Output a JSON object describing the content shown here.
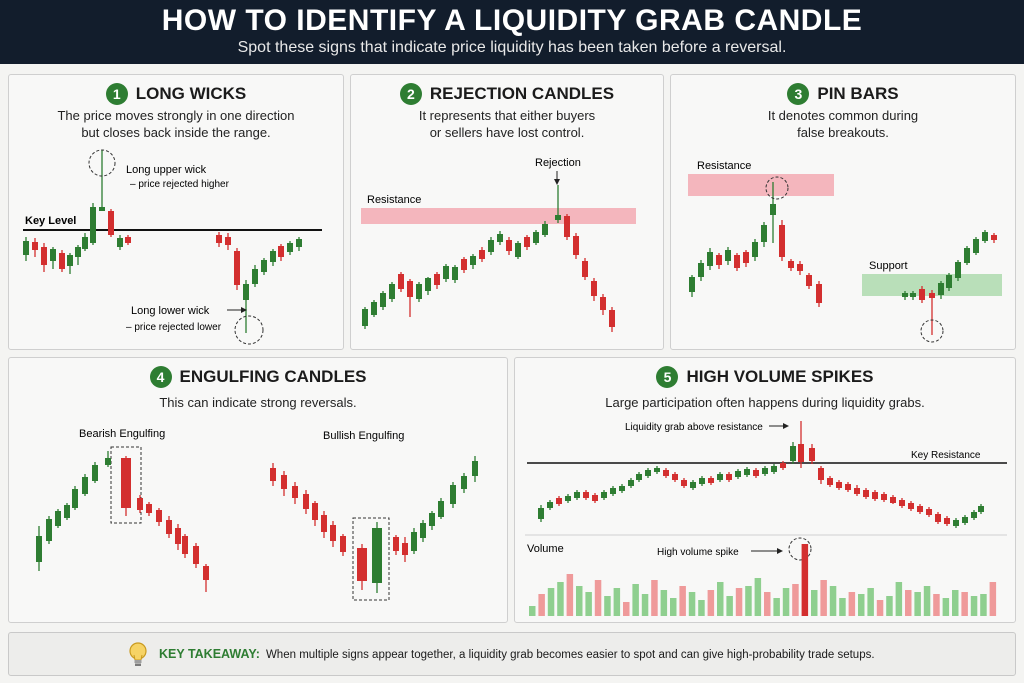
{
  "header": {
    "title": "HOW TO IDENTIFY A LIQUIDITY GRAB CANDLE",
    "subtitle": "Spot these signs that indicate price liquidity has been taken before a reversal."
  },
  "colors": {
    "bull": "#2e7d32",
    "bear": "#d32f2f",
    "resistance_zone": "#f4b6bd",
    "support_zone": "#b9dfb9",
    "header_bg": "#121d2c"
  },
  "panels": {
    "wicks": {
      "number": "1",
      "title": "LONG WICKS",
      "desc1": "The price moves strongly in one direction",
      "desc2": "but closes back inside the range.",
      "key_level": "Key Level",
      "upper1": "Long upper wick",
      "upper2": "– price rejected higher",
      "lower1": "Long lower wick",
      "lower2": "– price rejected lower"
    },
    "rejection": {
      "number": "2",
      "title": "REJECTION CANDLES",
      "desc1": "It represents that either buyers",
      "desc2": "or sellers have lost control.",
      "resistance": "Resistance",
      "rejection": "Rejection"
    },
    "pin": {
      "number": "3",
      "title": "PIN BARS",
      "desc1": "It denotes common during",
      "desc2": "false breakouts.",
      "resistance": "Resistance",
      "support": "Support"
    },
    "engulfing": {
      "number": "4",
      "title": "ENGULFING CANDLES",
      "desc": "This can indicate strong reversals.",
      "bearish": "Bearish Engulfing",
      "bullish": "Bullish Engulfing"
    },
    "volume": {
      "number": "5",
      "title": "HIGH VOLUME SPIKES",
      "desc": "Large participation often happens during liquidity grabs.",
      "grab": "Liquidity grab above resistance",
      "key_resistance": "Key Resistance",
      "volume_label": "Volume",
      "spike": "High volume spike"
    }
  },
  "footer": {
    "icon": "lightbulb-icon",
    "key_label": "KEY TAKEAWAY:",
    "text": "When multiple signs appear together, a liquidity grab becomes easier to spot and can give high-probability trade setups."
  }
}
